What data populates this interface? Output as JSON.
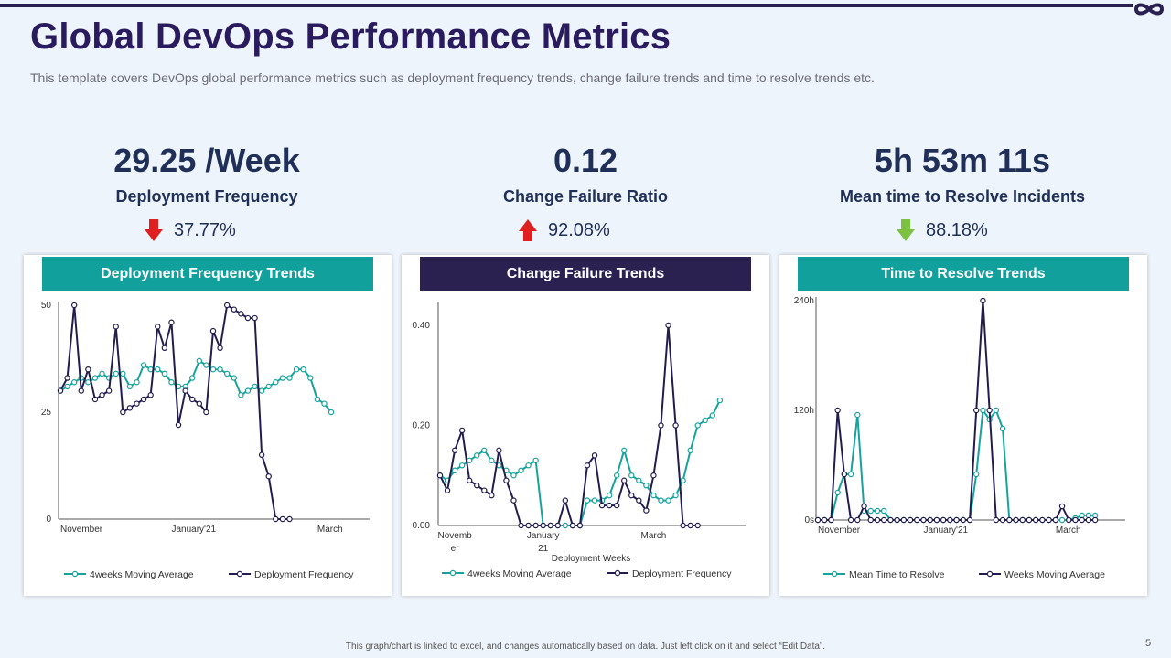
{
  "header": {
    "title": "Global DevOps Performance Metrics",
    "subtitle": "This template covers DevOps global performance metrics such as deployment frequency trends, change failure trends and time to resolve trends etc."
  },
  "kpis": [
    {
      "value": "29.25 /Week",
      "label": "Deployment Frequency",
      "delta": "37.77%",
      "direction": "down",
      "arrow_color": "#e02020"
    },
    {
      "value": "0.12",
      "label": "Change Failure Ratio",
      "delta": "92.08%",
      "direction": "up",
      "arrow_color": "#e02020"
    },
    {
      "value": "5h 53m 11s",
      "label": "Mean time to Resolve Incidents",
      "delta": "88.18%",
      "direction": "down",
      "arrow_color": "#7cc242"
    }
  ],
  "colors": {
    "teal": "#16a39c",
    "navy": "#231d4f",
    "header_teal": "#12a09c",
    "header_navy": "#2a2151",
    "title": "#2a1a5e"
  },
  "chart_data": [
    {
      "type": "line",
      "title": "Deployment Frequency Trends",
      "header_color": "#12a09c",
      "y_ticks": [
        "0",
        "25",
        "50"
      ],
      "ylim": [
        0,
        50
      ],
      "x_labels": [
        {
          "text": "November",
          "i": 0
        },
        {
          "text": "January'21",
          "i": 16
        },
        {
          "text": "March",
          "i": 37
        }
      ],
      "xlabel": "",
      "n": 45,
      "series": [
        {
          "name": "4weeks Moving Average",
          "color": "#16a39c",
          "values": [
            30,
            31,
            32,
            33,
            32,
            33,
            34,
            33,
            34,
            34,
            31,
            32,
            36,
            35,
            35,
            34,
            32,
            31,
            31,
            33,
            37,
            36,
            35,
            35,
            34,
            33,
            29,
            30,
            31,
            30,
            31,
            32,
            33,
            33,
            35,
            35,
            33,
            28,
            27,
            25
          ]
        },
        {
          "name": "Deployment Frequency",
          "color": "#231d4f",
          "values": [
            30,
            33,
            50,
            30,
            35,
            28,
            29,
            30,
            45,
            25,
            26,
            27,
            28,
            29,
            45,
            40,
            46,
            22,
            30,
            28,
            27,
            25,
            44,
            40,
            50,
            49,
            48,
            47,
            47,
            15,
            10,
            0,
            0,
            0
          ]
        }
      ]
    },
    {
      "type": "line",
      "title": "Change Failure  Trends",
      "header_color": "#2a2151",
      "y_ticks": [
        "0.00",
        "0.20",
        "0.40"
      ],
      "ylim": [
        0,
        0.44
      ],
      "x_labels": [
        {
          "text": "Novemb",
          "text2": "er",
          "i": 2
        },
        {
          "text": "January",
          "text2": "21",
          "i": 14
        },
        {
          "text": "March",
          "i": 29
        }
      ],
      "xlabel": "Deployment Weeks",
      "n": 42,
      "series": [
        {
          "name": "4weeks Moving Average",
          "color": "#16a39c",
          "values": [
            0.1,
            0.09,
            0.11,
            0.12,
            0.13,
            0.14,
            0.15,
            0.13,
            0.12,
            0.11,
            0.1,
            0.11,
            0.12,
            0.13,
            0.0,
            0.0,
            0.0,
            0.0,
            0.0,
            0.0,
            0.05,
            0.05,
            0.05,
            0.06,
            0.1,
            0.15,
            0.1,
            0.09,
            0.08,
            0.06,
            0.05,
            0.05,
            0.06,
            0.09,
            0.15,
            0.2,
            0.21,
            0.22,
            0.25
          ]
        },
        {
          "name": "Deployment Frequency",
          "color": "#231d4f",
          "values": [
            0.1,
            0.07,
            0.15,
            0.19,
            0.09,
            0.08,
            0.07,
            0.06,
            0.15,
            0.09,
            0.05,
            0.0,
            0.0,
            0.0,
            0.0,
            0.0,
            0.0,
            0.05,
            0.0,
            0.0,
            0.12,
            0.14,
            0.04,
            0.04,
            0.04,
            0.09,
            0.06,
            0.05,
            0.03,
            0.1,
            0.2,
            0.4,
            0.2,
            0.0,
            0.0,
            0.0
          ]
        }
      ]
    },
    {
      "type": "line",
      "title": "Time to Resolve Trends",
      "header_color": "#12a09c",
      "y_ticks": [
        "0s",
        "120h",
        "240h"
      ],
      "ylim": [
        0,
        240
      ],
      "x_labels": [
        {
          "text": "November",
          "i": 0
        },
        {
          "text": "January'21",
          "i": 16
        },
        {
          "text": "March",
          "i": 36
        }
      ],
      "xlabel": "",
      "n": 47,
      "series": [
        {
          "name": "Mean Time to Resolve",
          "color": "#16a39c",
          "values": [
            0,
            0,
            0,
            30,
            50,
            50,
            115,
            10,
            10,
            10,
            10,
            0,
            0,
            0,
            0,
            0,
            0,
            0,
            0,
            0,
            0,
            0,
            0,
            0,
            50,
            120,
            110,
            120,
            100,
            0,
            0,
            0,
            0,
            0,
            0,
            0,
            0,
            0,
            0,
            2,
            5,
            5,
            5
          ]
        },
        {
          "name": "Weeks Moving Average",
          "color": "#231d4f",
          "values": [
            0,
            0,
            0,
            120,
            50,
            0,
            0,
            15,
            0,
            0,
            0,
            0,
            0,
            0,
            0,
            0,
            0,
            0,
            0,
            0,
            0,
            0,
            0,
            0,
            120,
            240,
            120,
            0,
            0,
            0,
            0,
            0,
            0,
            0,
            0,
            0,
            0,
            15,
            0,
            0,
            0,
            0,
            0
          ]
        }
      ]
    }
  ],
  "footer": {
    "note": "This graph/chart is linked to excel, and changes automatically based on data. Just left click on it and select “Edit Data”.",
    "page": "5"
  }
}
